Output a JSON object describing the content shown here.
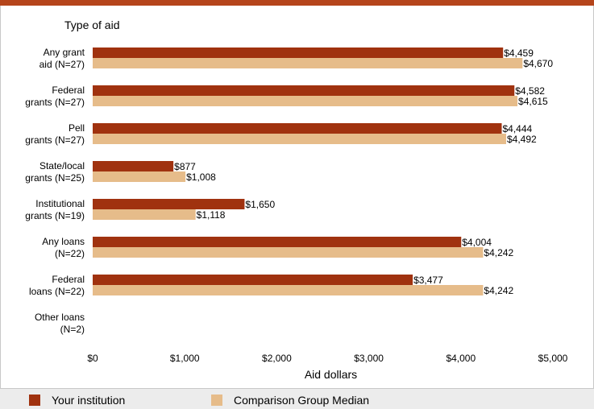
{
  "colors": {
    "institution": "#a0320f",
    "comparison": "#e6bc8a",
    "accent_bar": "#b5451b"
  },
  "chart_data": {
    "type": "bar",
    "orientation": "horizontal",
    "y_title": "Type of aid",
    "xlabel": "Aid dollars",
    "xlim": [
      0,
      5000
    ],
    "x_ticks": [
      "$0",
      "$1,000",
      "$2,000",
      "$3,000",
      "$4,000",
      "$5,000"
    ],
    "categories": [
      [
        "Any grant",
        "aid (N=27)"
      ],
      [
        "Federal",
        "grants (N=27)"
      ],
      [
        "Pell",
        "grants (N=27)"
      ],
      [
        "State/local",
        "grants (N=25)"
      ],
      [
        "Institutional",
        "grants (N=19)"
      ],
      [
        "Any loans",
        "(N=22)"
      ],
      [
        "Federal",
        "loans (N=22)"
      ],
      [
        "Other loans",
        "(N=2)"
      ]
    ],
    "series": [
      {
        "name": "Your institution",
        "values": [
          4459,
          4582,
          4444,
          877,
          1650,
          4004,
          3477,
          null
        ],
        "labels": [
          "$4,459",
          "$4,582",
          "$4,444",
          "$877",
          "$1,650",
          "$4,004",
          "$3,477",
          ""
        ]
      },
      {
        "name": "Comparison Group Median",
        "values": [
          4670,
          4615,
          4492,
          1008,
          1118,
          4242,
          4242,
          null
        ],
        "labels": [
          "$4,670",
          "$4,615",
          "$4,492",
          "$1,008",
          "$1,118",
          "$4,242",
          "$4,242",
          ""
        ]
      }
    ],
    "grid": false,
    "legend": "bottom"
  }
}
